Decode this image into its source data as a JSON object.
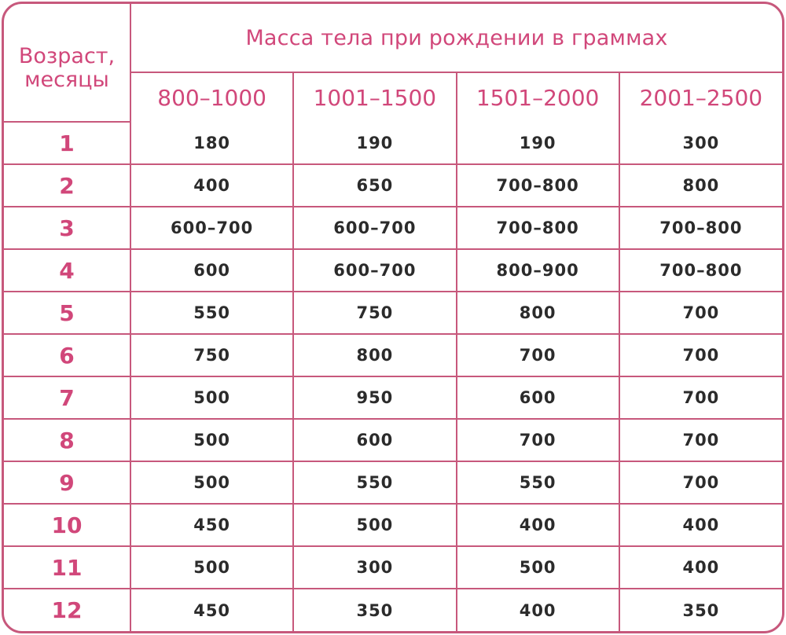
{
  "header": {
    "age_label_line1": "Возраст,",
    "age_label_line2": "месяцы",
    "main_title": "Масса тела при рождении в граммах",
    "ranges": [
      "800–1000",
      "1001–1500",
      "1501–2000",
      "2001–2500"
    ]
  },
  "rows": [
    {
      "age": "1",
      "values": [
        "180",
        "190",
        "190",
        "300"
      ]
    },
    {
      "age": "2",
      "values": [
        "400",
        "650",
        "700–800",
        "800"
      ]
    },
    {
      "age": "3",
      "values": [
        "600–700",
        "600–700",
        "700–800",
        "700–800"
      ]
    },
    {
      "age": "4",
      "values": [
        "600",
        "600–700",
        "800–900",
        "700–800"
      ]
    },
    {
      "age": "5",
      "values": [
        "550",
        "750",
        "800",
        "700"
      ]
    },
    {
      "age": "6",
      "values": [
        "750",
        "800",
        "700",
        "700"
      ]
    },
    {
      "age": "7",
      "values": [
        "500",
        "950",
        "600",
        "700"
      ]
    },
    {
      "age": "8",
      "values": [
        "500",
        "600",
        "700",
        "700"
      ]
    },
    {
      "age": "9",
      "values": [
        "500",
        "550",
        "550",
        "700"
      ]
    },
    {
      "age": "10",
      "values": [
        "450",
        "500",
        "400",
        "400"
      ]
    },
    {
      "age": "11",
      "values": [
        "500",
        "300",
        "500",
        "400"
      ]
    },
    {
      "age": "12",
      "values": [
        "450",
        "350",
        "400",
        "350"
      ]
    }
  ],
  "colors": {
    "border": "#c7587c",
    "header_text": "#d1477a",
    "body_text": "#2b2b2b"
  }
}
